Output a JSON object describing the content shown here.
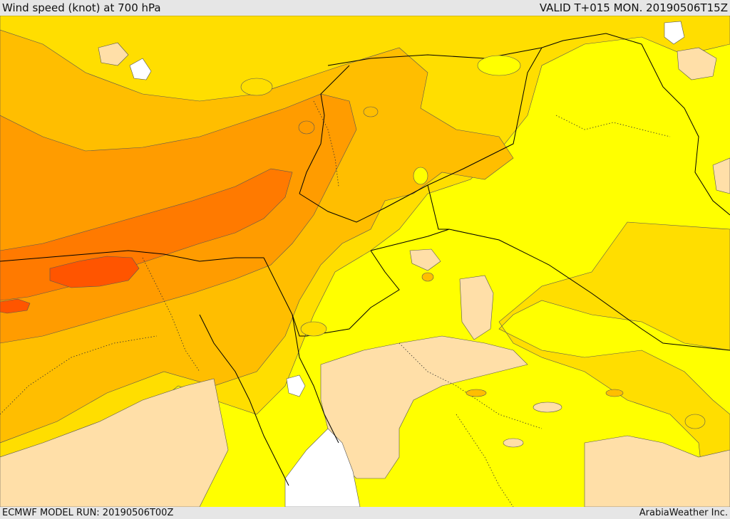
{
  "header": {
    "title": "Wind speed (knot) at 700 hPa",
    "valid": "VALID T+015 MON. 20190506T15Z"
  },
  "footer": {
    "model_run": "ECMWF MODEL RUN: 20190506T00Z",
    "credit": "ArabiaWeather Inc."
  },
  "palette": {
    "water_or_low": "#ffffff",
    "pale": "#ffdfa8",
    "yellow": "#ffff00",
    "gold": "#ffde00",
    "amber": "#ffbe00",
    "orange": "#ff9c00",
    "deep_orange": "#ff7a00",
    "red_orange": "#ff5500",
    "border_line": "#000000",
    "contour_line": "#555555"
  }
}
